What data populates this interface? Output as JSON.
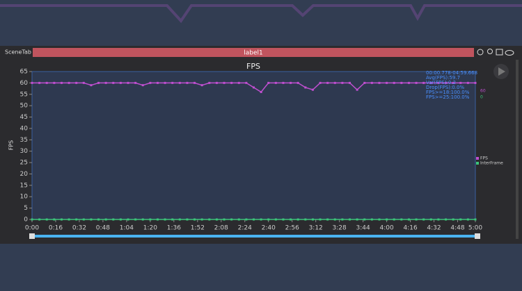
{
  "tab_label": "SceneTab",
  "scene_label": "label1",
  "stats": [
    "00:00.778-04:59.668",
    "Avg(FPS):59.7",
    "Var(FPS):0.2",
    "Drop(FPS):0.0%",
    "FPS>=18:100.0%",
    "FPS>=25:100.0%"
  ],
  "current_values": [
    "60",
    "0"
  ],
  "chart_data": {
    "type": "line",
    "title": "FPS",
    "y_label": "FPS",
    "x": [
      0,
      5,
      10,
      15,
      20,
      25,
      30,
      35,
      40,
      45,
      50,
      55,
      60,
      65,
      70,
      75,
      80,
      85,
      90,
      95,
      100,
      105,
      110,
      115,
      120,
      125,
      130,
      135,
      140,
      145,
      150,
      155,
      160,
      165,
      170,
      175,
      180,
      185,
      190,
      195,
      200,
      205,
      210,
      215,
      220,
      225,
      230,
      235,
      240,
      245,
      250,
      255,
      260,
      265,
      270,
      275,
      280,
      285,
      290,
      295,
      300
    ],
    "series": [
      {
        "name": "FPS",
        "color": "#c04fd0",
        "values": [
          60,
          60,
          60,
          60,
          60,
          60,
          60,
          60,
          59,
          60,
          60,
          60,
          60,
          60,
          60,
          59,
          60,
          60,
          60,
          60,
          60,
          60,
          60,
          59,
          60,
          60,
          60,
          60,
          60,
          60,
          58,
          56,
          60,
          60,
          60,
          60,
          60,
          58,
          57,
          60,
          60,
          60,
          60,
          60,
          57,
          60,
          60,
          60,
          60,
          60,
          60,
          60,
          60,
          60,
          60,
          60,
          60,
          60,
          60,
          60,
          60
        ]
      },
      {
        "name": "InterFrame",
        "color": "#3cc47a",
        "values": [
          0,
          0,
          0,
          0,
          0,
          0,
          0,
          0,
          0,
          0,
          0,
          0,
          0,
          0,
          0,
          0,
          0,
          0,
          0,
          0,
          0,
          0,
          0,
          0,
          0,
          0,
          0,
          0,
          0,
          0,
          0,
          0,
          0,
          0,
          0,
          0,
          0,
          0,
          0,
          0,
          0,
          0,
          0,
          0,
          0,
          0,
          0,
          0,
          0,
          0,
          0,
          0,
          0,
          0,
          0,
          0,
          0,
          0,
          0,
          0,
          0
        ]
      }
    ],
    "xlim": [
      0,
      300
    ],
    "xticks": [
      {
        "value": 0,
        "label": "0:00"
      },
      {
        "value": 16,
        "label": "0:16"
      },
      {
        "value": 32,
        "label": "0:32"
      },
      {
        "value": 48,
        "label": "0:48"
      },
      {
        "value": 64,
        "label": "1:04"
      },
      {
        "value": 80,
        "label": "1:20"
      },
      {
        "value": 96,
        "label": "1:36"
      },
      {
        "value": 112,
        "label": "1:52"
      },
      {
        "value": 128,
        "label": "2:08"
      },
      {
        "value": 144,
        "label": "2:24"
      },
      {
        "value": 160,
        "label": "2:40"
      },
      {
        "value": 176,
        "label": "2:56"
      },
      {
        "value": 192,
        "label": "3:12"
      },
      {
        "value": 208,
        "label": "3:28"
      },
      {
        "value": 224,
        "label": "3:44"
      },
      {
        "value": 240,
        "label": "4:00"
      },
      {
        "value": 256,
        "label": "4:16"
      },
      {
        "value": 272,
        "label": "4:32"
      },
      {
        "value": 288,
        "label": "4:48"
      },
      {
        "value": 300,
        "label": "5:00"
      }
    ],
    "ylim": [
      0,
      65
    ],
    "yticks": [
      0,
      5,
      10,
      15,
      20,
      25,
      30,
      35,
      40,
      45,
      50,
      55,
      60,
      65
    ],
    "grid": false
  }
}
